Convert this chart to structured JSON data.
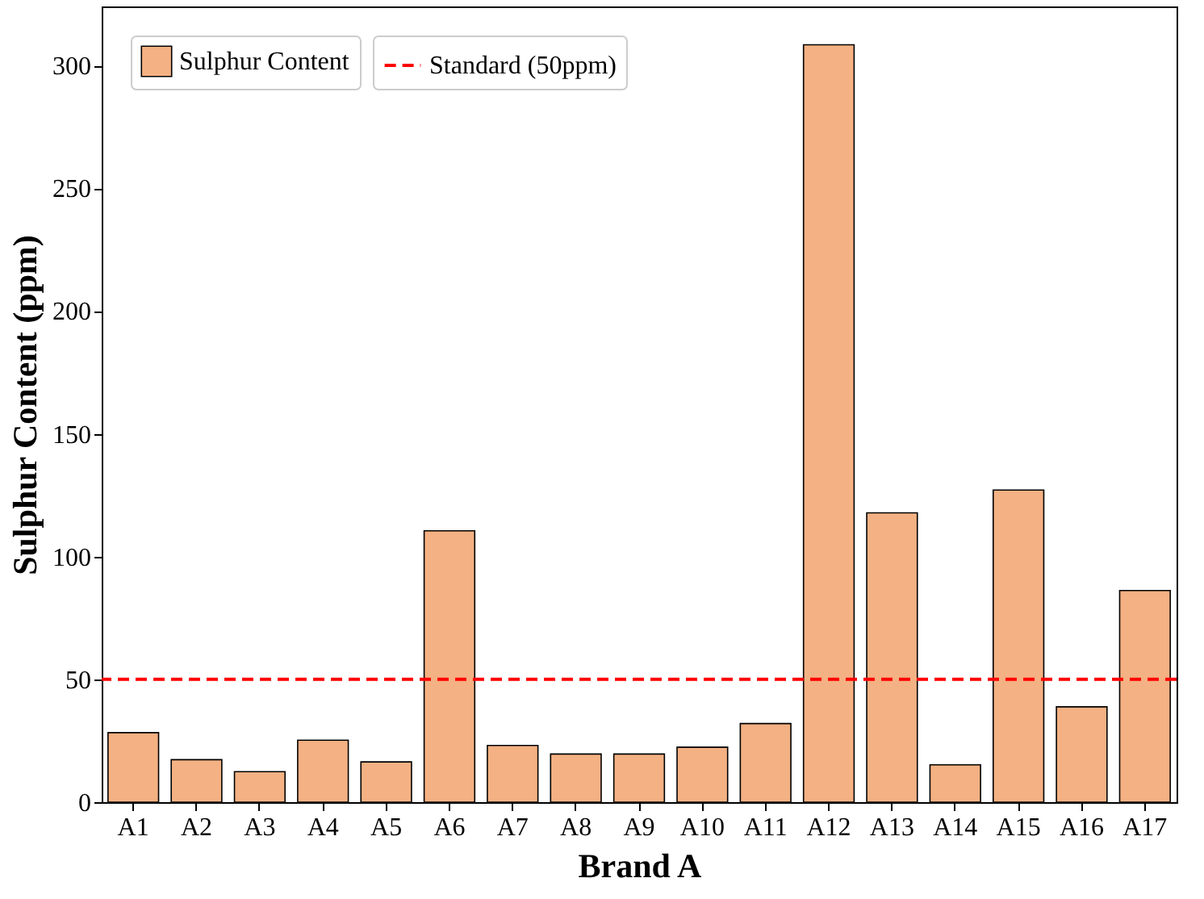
{
  "chart_data": {
    "type": "bar",
    "xlabel": "Brand A",
    "ylabel": "Sulphur Content (ppm)",
    "categories": [
      "A1",
      "A2",
      "A3",
      "A4",
      "A5",
      "A6",
      "A7",
      "A8",
      "A9",
      "A10",
      "A11",
      "A12",
      "A13",
      "A14",
      "A15",
      "A16",
      "A17"
    ],
    "series": [
      {
        "name": "Sulphur Content",
        "color": "#f4b183",
        "values": [
          28.3,
          17.3,
          12.4,
          25.2,
          16.4,
          110.5,
          23.1,
          19.6,
          19.6,
          22.4,
          32.0,
          308.4,
          117.8,
          15.2,
          127.1,
          38.8,
          86.2
        ]
      }
    ],
    "ylim": [
      0,
      324
    ],
    "yticks": [
      0,
      50,
      100,
      150,
      200,
      250,
      300
    ],
    "ref_lines": [
      {
        "axis": "y",
        "value": 50,
        "label": "Standard (50ppm)",
        "color": "#ff0000",
        "line_style": "dashed"
      }
    ],
    "legend": "top left",
    "grid": false
  }
}
